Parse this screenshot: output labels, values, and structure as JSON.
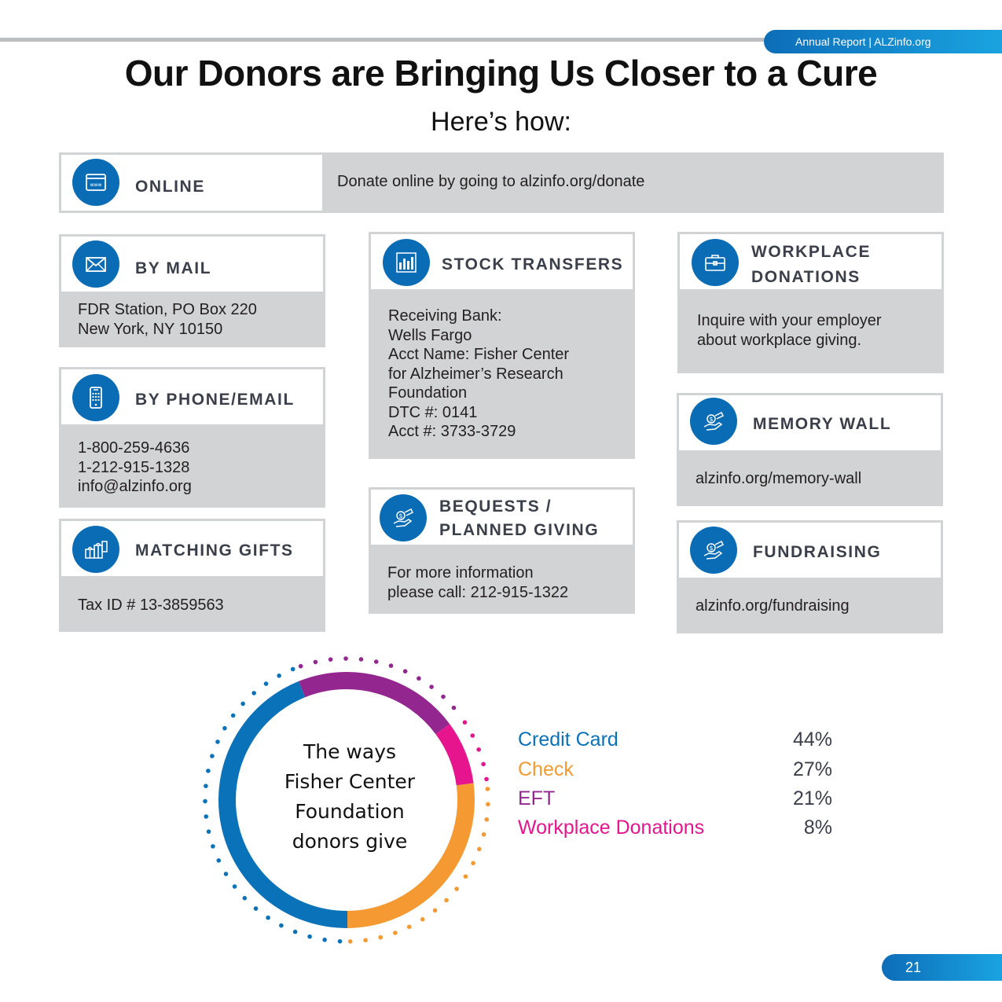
{
  "header": {
    "tag": "Annual Report | ALZinfo.org"
  },
  "title": "Our Donors are Bringing Us Closer to a Cure",
  "subtitle": "Here’s how:",
  "cards": {
    "online": {
      "label": "ONLINE",
      "text": "Donate online by going to alzinfo.org/donate",
      "icon": "browser-window-icon"
    },
    "mail": {
      "label": "BY MAIL",
      "text": "FDR Station, PO Box 220\nNew York, NY 10150",
      "icon": "envelope-icon"
    },
    "phone": {
      "label": "BY PHONE/EMAIL",
      "text": "1-800-259-4636\n1-212-915-1328\ninfo@alzinfo.org",
      "icon": "mobile-phone-icon"
    },
    "matching": {
      "label": "MATCHING GIFTS",
      "text": "Tax ID # 13-3859563",
      "icon": "gift-boxes-icon"
    },
    "stock": {
      "label": "STOCK TRANSFERS",
      "text": "Receiving Bank:\nWells Fargo\nAcct Name: Fisher Center\nfor Alzheimer’s Research\nFoundation\nDTC #: 0141\nAcct #: 3733-3729",
      "icon": "bar-chart-icon"
    },
    "bequests": {
      "label": "BEQUESTS /\nPLANNED GIVING",
      "text": "For more information\nplease call: 212-915-1322",
      "icon": "hand-money-icon"
    },
    "workplace": {
      "label": "WORKPLACE\nDONATIONS",
      "text": "Inquire with your employer\nabout workplace giving.",
      "icon": "briefcase-icon"
    },
    "memory": {
      "label": "MEMORY WALL",
      "text": "alzinfo.org/memory-wall",
      "icon": "hand-money-icon"
    },
    "fundraising": {
      "label": "FUNDRAISING",
      "text": "alzinfo.org/fundraising",
      "icon": "hand-money-icon"
    }
  },
  "chart_data": {
    "type": "pie",
    "center_label": "The ways\nFisher Center\nFoundation\ndonors give",
    "categories": [
      "Credit Card",
      "Check",
      "EFT",
      "Workplace Donations"
    ],
    "values": [
      44,
      27,
      21,
      8
    ],
    "value_labels": [
      "44%",
      "27%",
      "21%",
      "8%"
    ],
    "colors": [
      "#0a72b9",
      "#f59a32",
      "#93278f",
      "#e6158d"
    ]
  },
  "footer": {
    "page_number": "21"
  }
}
